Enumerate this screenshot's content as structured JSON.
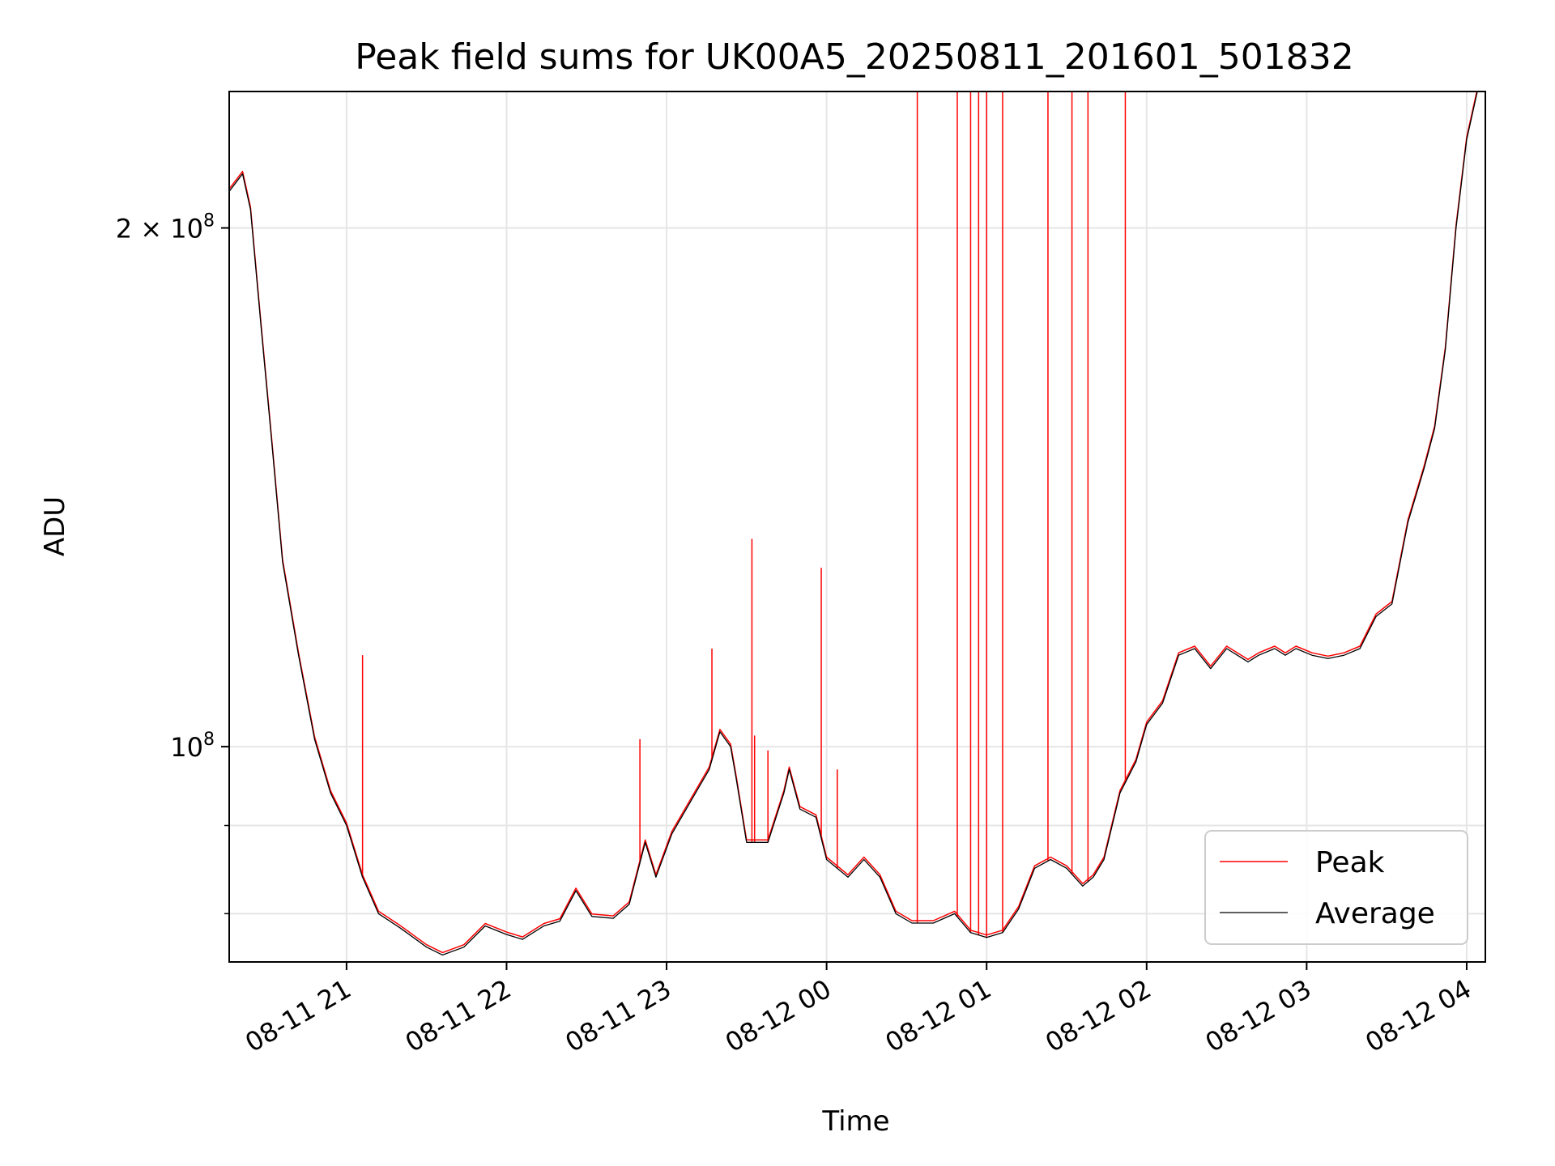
{
  "chart_data": {
    "type": "line",
    "title": "Peak field sums for UK00A5_20250811_201601_501832",
    "xlabel": "Time",
    "ylabel": "ADU",
    "y_scale": "log",
    "grid": true,
    "legend_placement": "lower-right",
    "colors": {
      "Peak": "#ff0000",
      "Average": "#000000"
    },
    "x_ticks": [
      "08-11 21",
      "08-11 22",
      "08-11 23",
      "08-12 00",
      "08-12 01",
      "08-12 02",
      "08-12 03",
      "08-12 04"
    ],
    "x_tick_times": [
      "2025-08-11 21:00",
      "2025-08-11 22:00",
      "2025-08-11 23:00",
      "2025-08-12 00:00",
      "2025-08-12 01:00",
      "2025-08-12 02:00",
      "2025-08-12 03:00",
      "2025-08-12 04:00"
    ],
    "y_ticks": [
      {
        "value": 100000000,
        "mantissa": "",
        "exp": "8",
        "label": "10^8"
      },
      {
        "value": 200000000,
        "mantissa": "2 × ",
        "exp": "8",
        "label": "2 × 10^8"
      }
    ],
    "x_range": [
      "2025-08-11 20:16",
      "2025-08-12 04:07"
    ],
    "y_range": [
      75000000,
      240000000
    ],
    "series": [
      {
        "name": "Average",
        "points": [
          [
            "2025-08-11 20:16",
            210000000
          ],
          [
            "2025-08-11 20:18",
            212000000
          ],
          [
            "2025-08-11 20:21",
            215000000
          ],
          [
            "2025-08-11 20:24",
            205000000
          ],
          [
            "2025-08-11 20:28",
            175000000
          ],
          [
            "2025-08-11 20:32",
            150000000
          ],
          [
            "2025-08-11 20:36",
            128000000
          ],
          [
            "2025-08-11 20:42",
            113000000
          ],
          [
            "2025-08-11 20:48",
            101000000
          ],
          [
            "2025-08-11 20:54",
            94000000
          ],
          [
            "2025-08-11 21:00",
            90000000
          ],
          [
            "2025-08-11 21:06",
            84000000
          ],
          [
            "2025-08-11 21:12",
            80000000
          ],
          [
            "2025-08-11 21:20",
            78500000
          ],
          [
            "2025-08-11 21:30",
            76500000
          ],
          [
            "2025-08-11 21:36",
            75700000
          ],
          [
            "2025-08-11 21:44",
            76500000
          ],
          [
            "2025-08-11 21:52",
            78700000
          ],
          [
            "2025-08-11 22:00",
            77800000
          ],
          [
            "2025-08-11 22:06",
            77300000
          ],
          [
            "2025-08-11 22:14",
            78700000
          ],
          [
            "2025-08-11 22:20",
            79200000
          ],
          [
            "2025-08-11 22:26",
            82500000
          ],
          [
            "2025-08-11 22:32",
            79700000
          ],
          [
            "2025-08-11 22:40",
            79500000
          ],
          [
            "2025-08-11 22:46",
            81000000
          ],
          [
            "2025-08-11 22:52",
            88000000
          ],
          [
            "2025-08-11 22:56",
            84000000
          ],
          [
            "2025-08-11 23:02",
            89000000
          ],
          [
            "2025-08-11 23:10",
            93500000
          ],
          [
            "2025-08-11 23:16",
            97000000
          ],
          [
            "2025-08-11 23:20",
            102000000
          ],
          [
            "2025-08-11 23:24",
            100000000
          ],
          [
            "2025-08-11 23:26",
            96000000
          ],
          [
            "2025-08-11 23:30",
            88000000
          ],
          [
            "2025-08-11 23:38",
            88000000
          ],
          [
            "2025-08-11 23:44",
            94000000
          ],
          [
            "2025-08-11 23:46",
            97000000
          ],
          [
            "2025-08-11 23:50",
            92000000
          ],
          [
            "2025-08-11 23:56",
            91000000
          ],
          [
            "2025-08-12 00:00",
            86000000
          ],
          [
            "2025-08-12 00:08",
            84000000
          ],
          [
            "2025-08-12 00:14",
            86000000
          ],
          [
            "2025-08-12 00:20",
            84000000
          ],
          [
            "2025-08-12 00:26",
            80000000
          ],
          [
            "2025-08-12 00:32",
            79000000
          ],
          [
            "2025-08-12 00:40",
            79000000
          ],
          [
            "2025-08-12 00:48",
            80000000
          ],
          [
            "2025-08-12 00:54",
            78000000
          ],
          [
            "2025-08-12 01:00",
            77500000
          ],
          [
            "2025-08-12 01:06",
            78000000
          ],
          [
            "2025-08-12 01:12",
            80500000
          ],
          [
            "2025-08-12 01:18",
            85000000
          ],
          [
            "2025-08-12 01:24",
            86000000
          ],
          [
            "2025-08-12 01:30",
            85000000
          ],
          [
            "2025-08-12 01:36",
            83000000
          ],
          [
            "2025-08-12 01:40",
            84000000
          ],
          [
            "2025-08-12 01:44",
            86000000
          ],
          [
            "2025-08-12 01:50",
            94000000
          ],
          [
            "2025-08-12 01:56",
            98000000
          ],
          [
            "2025-08-12 02:00",
            103000000
          ],
          [
            "2025-08-12 02:06",
            106000000
          ],
          [
            "2025-08-12 02:12",
            113000000
          ],
          [
            "2025-08-12 02:18",
            114000000
          ],
          [
            "2025-08-12 02:24",
            111000000
          ],
          [
            "2025-08-12 02:30",
            114000000
          ],
          [
            "2025-08-12 02:34",
            113000000
          ],
          [
            "2025-08-12 02:38",
            112000000
          ],
          [
            "2025-08-12 02:42",
            113000000
          ],
          [
            "2025-08-12 02:48",
            114000000
          ],
          [
            "2025-08-12 02:52",
            113000000
          ],
          [
            "2025-08-12 02:56",
            114000000
          ],
          [
            "2025-08-12 03:02",
            113000000
          ],
          [
            "2025-08-12 03:08",
            112500000
          ],
          [
            "2025-08-12 03:14",
            113000000
          ],
          [
            "2025-08-12 03:20",
            114000000
          ],
          [
            "2025-08-12 03:26",
            119000000
          ],
          [
            "2025-08-12 03:32",
            121000000
          ],
          [
            "2025-08-12 03:38",
            135000000
          ],
          [
            "2025-08-12 03:44",
            145000000
          ],
          [
            "2025-08-12 03:48",
            153000000
          ],
          [
            "2025-08-12 03:52",
            170000000
          ],
          [
            "2025-08-12 03:56",
            200000000
          ],
          [
            "2025-08-12 04:00",
            225000000
          ],
          [
            "2025-08-12 04:04",
            240000000
          ],
          [
            "2025-08-12 04:07",
            240000000
          ]
        ]
      },
      {
        "name": "Peak",
        "spikes": [
          {
            "t": "2025-08-11 21:06",
            "v": 113000000
          },
          {
            "t": "2025-08-11 22:50",
            "v": 101000000
          },
          {
            "t": "2025-08-11 23:17",
            "v": 114000000
          },
          {
            "t": "2025-08-11 23:32",
            "v": 132000000
          },
          {
            "t": "2025-08-11 23:33",
            "v": 101500000
          },
          {
            "t": "2025-08-11 23:38",
            "v": 99500000
          },
          {
            "t": "2025-08-11 23:58",
            "v": 127000000
          },
          {
            "t": "2025-08-12 00:04",
            "v": 97000000
          },
          {
            "t": "2025-08-12 00:34",
            "v": 240000000
          },
          {
            "t": "2025-08-12 00:49",
            "v": 240000000
          },
          {
            "t": "2025-08-12 00:54",
            "v": 240000000
          },
          {
            "t": "2025-08-12 00:57",
            "v": 240000000
          },
          {
            "t": "2025-08-12 01:00",
            "v": 240000000
          },
          {
            "t": "2025-08-12 01:06",
            "v": 240000000
          },
          {
            "t": "2025-08-12 01:23",
            "v": 240000000
          },
          {
            "t": "2025-08-12 01:32",
            "v": 240000000
          },
          {
            "t": "2025-08-12 01:38",
            "v": 240000000
          },
          {
            "t": "2025-08-12 01:52",
            "v": 240000000
          }
        ]
      }
    ]
  },
  "legend": {
    "peak_label": "Peak",
    "average_label": "Average"
  }
}
